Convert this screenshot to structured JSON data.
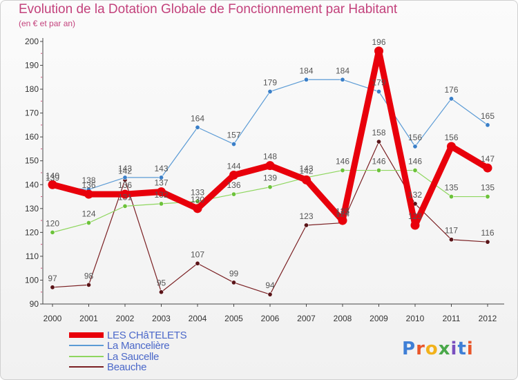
{
  "header": {
    "title": "Evolution de la Dotation Globale de Fonctionnement par Habitant",
    "subtitle": "(en € et par an)"
  },
  "logo": {
    "text": "Proxiti",
    "colors": [
      "#3f7fd6",
      "#e9562a",
      "#f2b21b",
      "#4aa84a",
      "#7a4fbf"
    ]
  },
  "chart_data": {
    "type": "line",
    "title": "Evolution de la Dotation Globale de Fonctionnement par Habitant",
    "subtitle": "(en € et par an)",
    "x": [
      2000,
      2001,
      2002,
      2003,
      2004,
      2005,
      2006,
      2007,
      2008,
      2009,
      2010,
      2011,
      2012
    ],
    "ylim": [
      90,
      200
    ],
    "yticks": [
      90,
      100,
      110,
      120,
      130,
      140,
      150,
      160,
      170,
      180,
      190,
      200
    ],
    "grid": false,
    "legend_position": "bottom-left",
    "series": [
      {
        "name": "LES CHâTELETS",
        "color": "#e8000b",
        "values": [
          140,
          136,
          136,
          137,
          130,
          144,
          148,
          142,
          125,
          196,
          123,
          156,
          147
        ]
      },
      {
        "name": "La Mancelière",
        "color": "#5b9bd5",
        "values": [
          139,
          138,
          143,
          143,
          164,
          157,
          179,
          184,
          184,
          179,
          156,
          176,
          165
        ]
      },
      {
        "name": "La Saucelle",
        "color": "#8ed65e",
        "values": [
          120,
          124,
          131,
          132,
          133,
          136,
          139,
          143,
          146,
          146,
          146,
          135,
          135
        ]
      },
      {
        "name": "Beauche",
        "color": "#7a1f22",
        "values": [
          97,
          98,
          142,
          95,
          107,
          99,
          94,
          123,
          124,
          158,
          132,
          117,
          116
        ]
      }
    ],
    "data_labels": [
      [
        "140",
        "136",
        "136",
        "137",
        "130",
        "144",
        "148",
        "142",
        "125",
        "196",
        "123",
        "156",
        "147"
      ],
      [
        "139",
        "138",
        "143",
        "143",
        "164",
        "157",
        "179",
        "184",
        "184",
        "179",
        "156",
        "176",
        "165"
      ],
      [
        "120",
        "124",
        "131",
        "132",
        "133",
        "136",
        "139",
        "143",
        "146",
        "146",
        "146",
        "135",
        "135"
      ],
      [
        "97",
        "98",
        "142",
        "95",
        "107",
        "99",
        "94",
        "123",
        "124",
        "158",
        "132",
        "117",
        "116"
      ]
    ]
  }
}
